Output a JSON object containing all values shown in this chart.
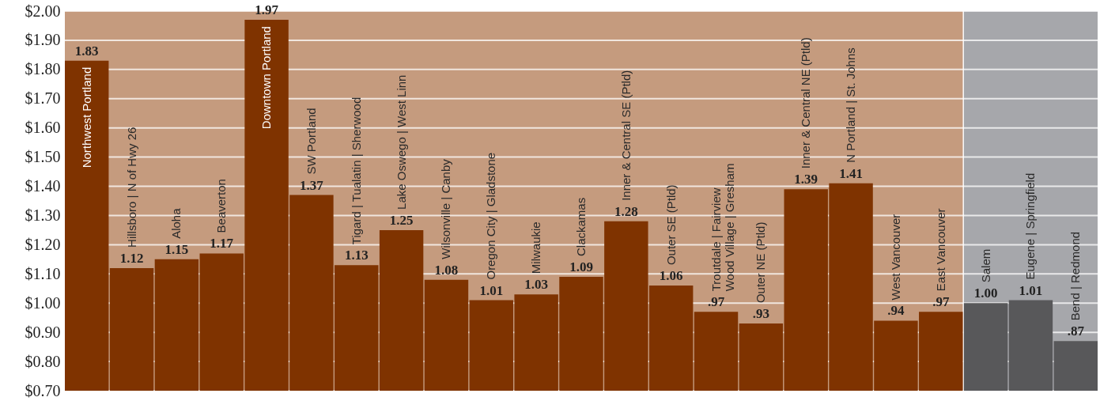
{
  "chart_data": {
    "type": "bar",
    "categories": [
      "Northwest Portland",
      "Hillsboro | N of Hwy 26",
      "Aloha",
      "Beaverton",
      "Downtown Portland",
      "SW Portland",
      "Tigard | Tualatin | Sherwood",
      "Lake Oswego | West Linn",
      "Wilsonville | Canby",
      "Oregon City | Gladstone",
      "Milwaukie",
      "Clackamas",
      "Inner & Central SE (Ptld)",
      "Outer SE (Ptld)",
      "Troutdale | Fairview\nWood Village | Gresham",
      "Outer NE (Ptld)",
      "Inner & Central NE (Ptld)",
      "N Portland | St. Johns",
      "West Vancouver",
      "East Vancouver",
      "Salem",
      "Eugene | Springfield",
      "Bend | Redmond"
    ],
    "values": [
      1.83,
      1.12,
      1.15,
      1.17,
      1.97,
      1.37,
      1.13,
      1.25,
      1.08,
      1.01,
      1.03,
      1.09,
      1.28,
      1.06,
      0.97,
      0.93,
      1.39,
      1.41,
      0.94,
      0.97,
      1.0,
      1.01,
      0.87
    ],
    "value_labels": [
      "1.83",
      "1.12",
      "1.15",
      "1.17",
      "1.97",
      "1.37",
      "1.13",
      "1.25",
      "1.08",
      "1.01",
      "1.03",
      "1.09",
      "1.28",
      "1.06",
      ".97",
      ".93",
      "1.39",
      "1.41",
      ".94",
      ".97",
      "1.00",
      "1.01",
      ".87"
    ],
    "colors": [
      "#7f3300",
      "#7f3300",
      "#7f3300",
      "#7f3300",
      "#7f3300",
      "#7f3300",
      "#7f3300",
      "#7f3300",
      "#7f3300",
      "#7f3300",
      "#7f3300",
      "#7f3300",
      "#7f3300",
      "#7f3300",
      "#7f3300",
      "#7f3300",
      "#7f3300",
      "#7f3300",
      "#7f3300",
      "#7f3300",
      "#58585a",
      "#58585a",
      "#58585a"
    ],
    "bands": [
      {
        "axis": "x",
        "from": "Northwest Portland",
        "to": "East Vancouver",
        "color": "#c59b7e"
      },
      {
        "axis": "x",
        "from": "Salem",
        "to": "Bend | Redmond",
        "color": "#a6a7ab"
      }
    ],
    "ylim": [
      0.7,
      2.0
    ],
    "yticks": [
      {
        "value": 0.7,
        "label": "$0.70"
      },
      {
        "value": 0.8,
        "label": "$0.80"
      },
      {
        "value": 0.9,
        "label": "$0.90"
      },
      {
        "value": 1.0,
        "label": "$1.00"
      },
      {
        "value": 1.1,
        "label": "$1.10"
      },
      {
        "value": 1.2,
        "label": "$1.20"
      },
      {
        "value": 1.3,
        "label": "$1.30"
      },
      {
        "value": 1.4,
        "label": "$1.40"
      },
      {
        "value": 1.5,
        "label": "$1.50"
      },
      {
        "value": 1.6,
        "label": "$1.60"
      },
      {
        "value": 1.7,
        "label": "$1.70"
      },
      {
        "value": 1.8,
        "label": "$1.80"
      },
      {
        "value": 1.9,
        "label": "$1.90"
      },
      {
        "value": 2.0,
        "label": "$2.00"
      }
    ],
    "grid": "y"
  }
}
